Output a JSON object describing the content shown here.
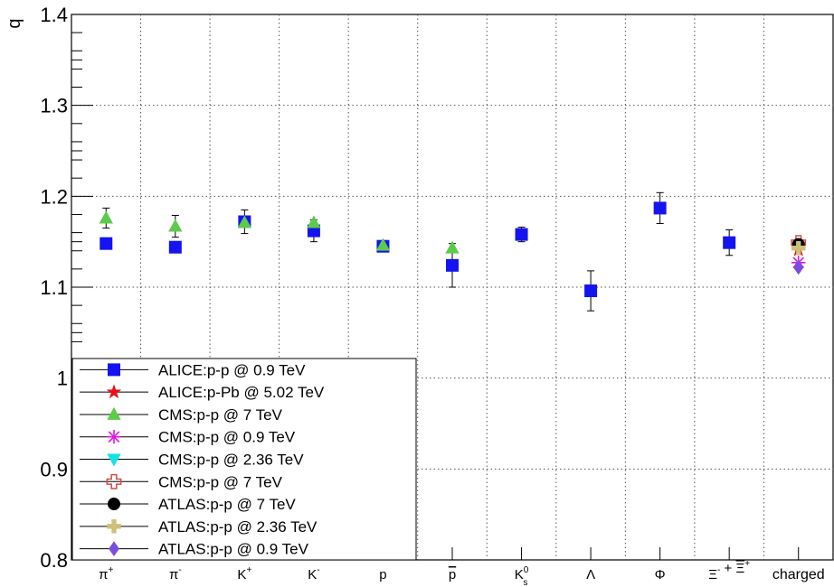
{
  "chart_data": {
    "type": "scatter",
    "ylabel": "q",
    "ylim": [
      0.8,
      1.4
    ],
    "y_ticks": [
      {
        "value": 0.8,
        "label": "0.8"
      },
      {
        "value": 0.9,
        "label": "0.9"
      },
      {
        "value": 1.0,
        "label": "1"
      },
      {
        "value": 1.1,
        "label": "1.1"
      },
      {
        "value": 1.2,
        "label": "1.2"
      },
      {
        "value": 1.3,
        "label": "1.3"
      },
      {
        "value": 1.4,
        "label": "1.4"
      }
    ],
    "categories": [
      {
        "base": "π",
        "sup": "+",
        "sub": "",
        "over": false
      },
      {
        "base": "π",
        "sup": "-",
        "sub": "",
        "over": false
      },
      {
        "base": "K",
        "sup": "+",
        "sub": "",
        "over": false
      },
      {
        "base": "K",
        "sup": "-",
        "sub": "",
        "over": false
      },
      {
        "base": "p",
        "sup": "",
        "sub": "",
        "over": false
      },
      {
        "base": "p",
        "sup": "",
        "sub": "",
        "over": true
      },
      {
        "base": "K",
        "sup": "0",
        "sub": "s",
        "over": false
      },
      {
        "base": "Λ",
        "sup": "",
        "sub": "",
        "over": false
      },
      {
        "base": "Φ",
        "sup": "",
        "sub": "",
        "over": false
      },
      {
        "base": "Ξ",
        "sup": "-",
        "sub": "",
        "over": false,
        "tail": " + ",
        "base2": "Ξ",
        "sup2": "+",
        "over2": true
      },
      {
        "base": "charged",
        "sup": "",
        "sub": "",
        "over": false
      }
    ],
    "grid": true,
    "legend_position": "bottom-left",
    "series": [
      {
        "name": "ALICE:p-p @ 0.9 TeV",
        "marker": "square",
        "color": "#1414f0",
        "points": [
          {
            "x": 0,
            "y": 1.148,
            "err": 0.004
          },
          {
            "x": 1,
            "y": 1.144,
            "err": 0.004
          },
          {
            "x": 2,
            "y": 1.172,
            "err": 0.013
          },
          {
            "x": 3,
            "y": 1.162,
            "err": 0.012
          },
          {
            "x": 4,
            "y": 1.145,
            "err": 0.003
          },
          {
            "x": 5,
            "y": 1.124,
            "err": 0.024
          },
          {
            "x": 6,
            "y": 1.158,
            "err": 0.008
          },
          {
            "x": 7,
            "y": 1.096,
            "err": 0.022
          },
          {
            "x": 8,
            "y": 1.187,
            "err": 0.017
          },
          {
            "x": 9,
            "y": 1.149,
            "err": 0.014
          }
        ]
      },
      {
        "name": "ALICE:p-Pb @ 5.02 TeV",
        "marker": "star",
        "color": "#e8101a",
        "points": [
          {
            "x": 10,
            "y": 1.141,
            "err": 0.0
          }
        ]
      },
      {
        "name": "CMS:p-p @ 7 TeV",
        "marker": "triangle-up",
        "color": "#5dcb4a",
        "points": [
          {
            "x": 0,
            "y": 1.176,
            "err": 0.011
          },
          {
            "x": 1,
            "y": 1.167,
            "err": 0.012
          },
          {
            "x": 2,
            "y": 1.171,
            "err": 0.0
          },
          {
            "x": 3,
            "y": 1.171,
            "err": 0.0
          },
          {
            "x": 4,
            "y": 1.146,
            "err": 0.0
          },
          {
            "x": 5,
            "y": 1.143,
            "err": 0.0
          }
        ]
      },
      {
        "name": "CMS:p-p @ 0.9 TeV",
        "marker": "asterisk",
        "color": "#e316e3",
        "points": [
          {
            "x": 10,
            "y": 1.127,
            "err": 0.0
          }
        ]
      },
      {
        "name": "CMS:p-p @ 2.36 TeV",
        "marker": "triangle-down",
        "color": "#14e2e6",
        "points": [
          {
            "x": 10,
            "y": 1.144,
            "err": 0.0
          }
        ]
      },
      {
        "name": "CMS:p-p @ 7 TeV",
        "marker": "open-cross",
        "color": "#cf4f4b",
        "points": [
          {
            "x": 10,
            "y": 1.149,
            "err": 0.0
          }
        ]
      },
      {
        "name": "ATLAS:p-p @ 7 TeV",
        "marker": "circle",
        "color": "#000000",
        "points": [
          {
            "x": 10,
            "y": 1.147,
            "err": 0.0
          }
        ]
      },
      {
        "name": "ATLAS:p-p @ 2.36 TeV",
        "marker": "cross",
        "color": "#cdc07a",
        "points": [
          {
            "x": 10,
            "y": 1.143,
            "err": 0.0
          }
        ]
      },
      {
        "name": "ATLAS:p-p @ 0.9 TeV",
        "marker": "diamond",
        "color": "#7a4fe0",
        "points": [
          {
            "x": 10,
            "y": 1.122,
            "err": 0.0
          }
        ]
      }
    ]
  }
}
